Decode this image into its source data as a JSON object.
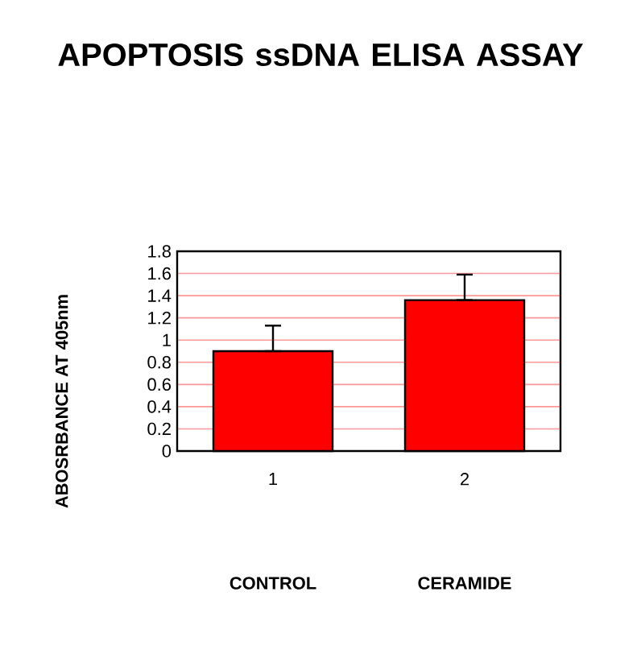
{
  "chart_data": {
    "type": "bar",
    "title": "APOPTOSIS ssDNA ELISA ASSAY",
    "ylabel": "ABOSRBANCE  AT 405nm",
    "categories": [
      "1",
      "2"
    ],
    "values": [
      0.9,
      1.36
    ],
    "errors": [
      [
        0.9,
        1.13
      ],
      [
        1.36,
        1.59
      ]
    ],
    "color": "#ff0000",
    "ylim": [
      0,
      1.8
    ],
    "yticks": [
      0,
      0.2,
      0.4,
      0.6,
      0.8,
      1,
      1.2,
      1.4,
      1.6,
      1.8
    ],
    "grid": "y",
    "annotations": [
      "CONTROL",
      "CERAMIDE"
    ]
  }
}
